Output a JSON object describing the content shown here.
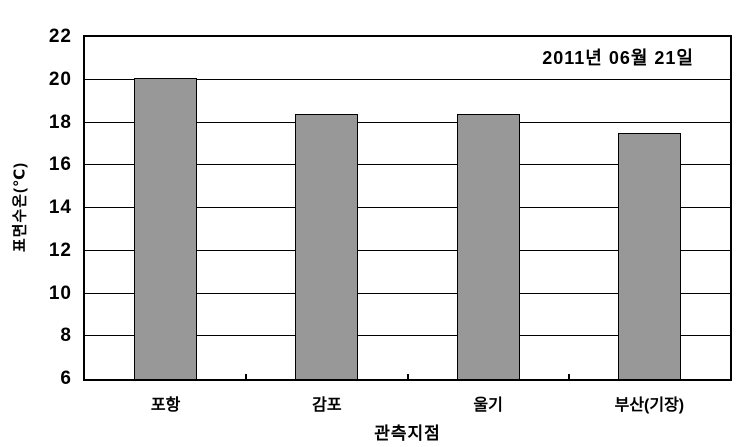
{
  "chart_data": {
    "type": "bar",
    "annotation": "2011년 06월 21일",
    "categories": [
      "포항",
      "감포",
      "울기",
      "부산(기장)"
    ],
    "values": [
      20.1,
      18.4,
      18.4,
      17.5
    ],
    "xlabel": "관측지점",
    "ylabel": "표면수온(℃)",
    "ylim": [
      6,
      22
    ],
    "yticks": [
      6,
      8,
      10,
      12,
      14,
      16,
      18,
      20,
      22
    ],
    "grid": true,
    "legend": null,
    "colors": {
      "bar_fill": "#989898",
      "bar_border": "#000000",
      "axis": "#000000",
      "background": "#ffffff"
    }
  }
}
